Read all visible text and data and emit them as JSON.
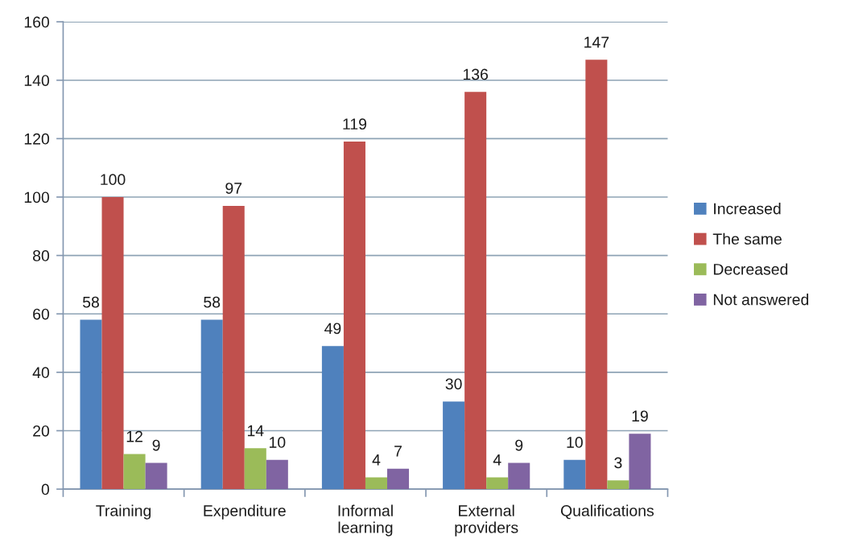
{
  "chart_data": {
    "type": "bar",
    "categories": [
      "Training",
      "Expenditure",
      "Informal\nlearning",
      "External\nproviders",
      "Qualifications"
    ],
    "series": [
      {
        "name": "Increased",
        "color": "#4f81bd",
        "values": [
          58,
          58,
          49,
          30,
          10
        ]
      },
      {
        "name": "The same",
        "color": "#c0504d",
        "values": [
          100,
          97,
          119,
          136,
          147
        ]
      },
      {
        "name": "Decreased",
        "color": "#9bbb59",
        "values": [
          12,
          14,
          4,
          4,
          3
        ]
      },
      {
        "name": "Not answered",
        "color": "#8064a2",
        "values": [
          9,
          10,
          7,
          9,
          19
        ]
      }
    ],
    "ylim": [
      0,
      160
    ],
    "yticks": [
      0,
      20,
      40,
      60,
      80,
      100,
      120,
      140,
      160
    ],
    "grid": "y",
    "legend": "right",
    "data_labels": true
  }
}
